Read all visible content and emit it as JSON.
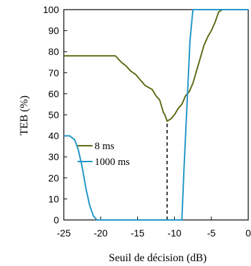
{
  "chart_data": {
    "type": "line",
    "title": "",
    "xlabel": "Seuil de décision (dB)",
    "ylabel": "TEB (%)",
    "xlim": [
      -25,
      0
    ],
    "ylim": [
      0,
      100
    ],
    "xticks": [
      -25,
      -20,
      -15,
      -10,
      -5,
      0
    ],
    "yticks": [
      0,
      10,
      20,
      30,
      40,
      50,
      60,
      70,
      80,
      90,
      100
    ],
    "grid": false,
    "legend": "center-left",
    "series": [
      {
        "name": "8 ms",
        "color": "#5a6b14",
        "x": [
          -25,
          -18,
          -17.2,
          -16.5,
          -16,
          -15.2,
          -14.5,
          -14,
          -13.5,
          -13,
          -12.5,
          -12,
          -11.5,
          -11.3,
          -11,
          -10.5,
          -10,
          -9.5,
          -9,
          -8.5,
          -8,
          -7.5,
          -7,
          -6.5,
          -6,
          -5.5,
          -5,
          -4.5,
          -4,
          -3.5,
          -3,
          0
        ],
        "y": [
          78,
          78,
          75,
          73,
          71,
          69,
          66,
          64,
          63,
          62,
          59,
          57,
          51,
          50,
          47,
          48,
          50,
          53,
          55,
          59,
          61,
          65,
          71,
          77,
          83,
          87,
          90,
          94,
          99,
          100,
          100,
          100
        ]
      },
      {
        "name": "1000 ms",
        "color": "#1f95c8",
        "x": [
          -25,
          -24.2,
          -23.5,
          -23,
          -22.5,
          -22,
          -21.5,
          -21,
          -20.5,
          -20,
          -9,
          -8.7,
          -8.3,
          -7.9,
          -7.5,
          0
        ],
        "y": [
          40,
          40,
          38,
          33,
          25,
          15,
          7,
          2,
          0,
          0,
          0,
          25,
          55,
          85,
          100,
          100
        ]
      }
    ],
    "annotations": [
      {
        "type": "dashed-vline",
        "x": -11,
        "y_from": 0,
        "y_to": 47
      }
    ]
  }
}
